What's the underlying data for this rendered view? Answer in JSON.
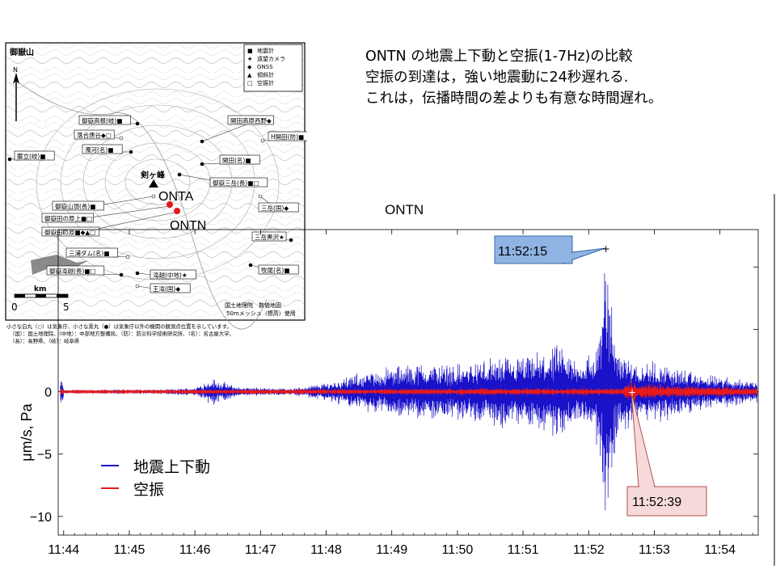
{
  "headline": {
    "line1": "ONTN の地震上下動と空振(1-7Hz)の比較",
    "line2": "空振の到達は，強い地震動に24秒遅れる.",
    "line3": "これは，伝播時間の差よりも有意な時間遅れ。"
  },
  "map": {
    "region_label": "御嶽山",
    "north_label": "N",
    "scale_unit": "km",
    "scale_start": "0",
    "scale_end": "5",
    "legend_items": [
      {
        "symbol": "■",
        "label": "地震計"
      },
      {
        "symbol": "★",
        "label": "遠望カメラ"
      },
      {
        "symbol": "◆",
        "label": "GNSS"
      },
      {
        "symbol": "▲",
        "label": "傾斜計"
      },
      {
        "symbol": "□",
        "label": "空振計"
      }
    ],
    "stations": [
      "御嶽高根(岐)■",
      "落合唐谷◆□",
      "濁河(名)■",
      "巌立(岐)■",
      "御嶽山頂(長)■",
      "御嶽田の原上■□",
      "御嶽田の原■◆▲□",
      "三浦ダム(名)■",
      "御嶽滝越(長)■□",
      "開田高原西野◆",
      "H開田(防)■",
      "開田(名)■",
      "御嶽三岳(長)■□",
      "三岳(国)◆",
      "三岳黒沢★",
      "滝越(中地)★",
      "王滝(国)◆",
      "牧尾(名)■"
    ],
    "peak_label": "剣ヶ峰",
    "onta_label": "ONTA",
    "ontn_label": "ONTN",
    "credit1": "国土地理院　数値地図",
    "credit2": "50mメッシュ（標高）使用",
    "note1": "小さな白丸（○）は気象庁、小さな黒丸（●）は気象庁以外の機関の観測点位置を示しています。",
    "note2": "（国）：国土地理院、（中地）：中部地方整備局、（防）：防災科学技術研究所、（名）：名古屋大学、",
    "note3": "（長）：長野県、（岐）：岐阜県",
    "colors": {
      "onta": "#e8161b",
      "ontn": "#e8161b"
    }
  },
  "legend": {
    "seismic_label": "地震上下動",
    "infrasound_label": "空振",
    "seismic_color": "#1a12c9",
    "infrasound_color": "#e81a1a"
  },
  "chart_data": {
    "type": "line",
    "title": "ONTN",
    "ylabel": "μm/s, Pa",
    "xlabel": "",
    "x_ticks": [
      "11:44",
      "11:45",
      "11:46",
      "11:47",
      "11:48",
      "11:49",
      "11:50",
      "11:51",
      "11:52",
      "11:53",
      "11:54"
    ],
    "y_ticks": [
      0,
      -5,
      -10
    ],
    "ylim": [
      -11.5,
      13.0
    ],
    "xlim": [
      "11:43:55",
      "11:54:35"
    ],
    "grid": false,
    "series": [
      {
        "name": "地震上下動",
        "color": "#1a12c9",
        "envelope": [
          {
            "t": "11:44:00",
            "a": 0.15
          },
          {
            "t": "11:45:30",
            "a": 0.2
          },
          {
            "t": "11:46:00",
            "a": 0.35
          },
          {
            "t": "11:46:15",
            "a": 1.2
          },
          {
            "t": "11:46:40",
            "a": 0.4
          },
          {
            "t": "11:47:30",
            "a": 0.3
          },
          {
            "t": "11:48:00",
            "a": 0.8
          },
          {
            "t": "11:48:30",
            "a": 1.6
          },
          {
            "t": "11:49:00",
            "a": 2.2
          },
          {
            "t": "11:49:30",
            "a": 2.6
          },
          {
            "t": "11:50:00",
            "a": 2.4
          },
          {
            "t": "11:50:30",
            "a": 3.0
          },
          {
            "t": "11:51:00",
            "a": 3.0
          },
          {
            "t": "11:51:30",
            "a": 4.0
          },
          {
            "t": "11:51:50",
            "a": 3.0
          },
          {
            "t": "11:52:05",
            "a": 3.5
          },
          {
            "t": "11:52:12",
            "a": 7.0
          },
          {
            "t": "11:52:15",
            "a": 12.5
          },
          {
            "t": "11:52:18",
            "a": 11.0
          },
          {
            "t": "11:52:22",
            "a": 6.5
          },
          {
            "t": "11:52:30",
            "a": 3.8
          },
          {
            "t": "11:52:45",
            "a": 2.8
          },
          {
            "t": "11:53:10",
            "a": 2.5
          },
          {
            "t": "11:53:40",
            "a": 1.6
          },
          {
            "t": "11:54:30",
            "a": 1.0
          }
        ]
      },
      {
        "name": "空振",
        "color": "#e81a1a",
        "envelope": [
          {
            "t": "11:44:00",
            "a": 0.18
          },
          {
            "t": "11:48:00",
            "a": 0.25
          },
          {
            "t": "11:50:00",
            "a": 0.3
          },
          {
            "t": "11:52:30",
            "a": 0.35
          },
          {
            "t": "11:52:39",
            "a": 0.9
          },
          {
            "t": "11:52:50",
            "a": 0.7
          },
          {
            "t": "11:53:30",
            "a": 0.55
          },
          {
            "t": "11:54:30",
            "a": 0.35
          }
        ]
      }
    ],
    "annotations": [
      {
        "label": "11:52:15",
        "t": "11:52:15",
        "y": 11.5,
        "series": "地震上下動"
      },
      {
        "label": "11:52:39",
        "t": "11:52:39",
        "y": 0.0,
        "series": "空振"
      }
    ]
  }
}
